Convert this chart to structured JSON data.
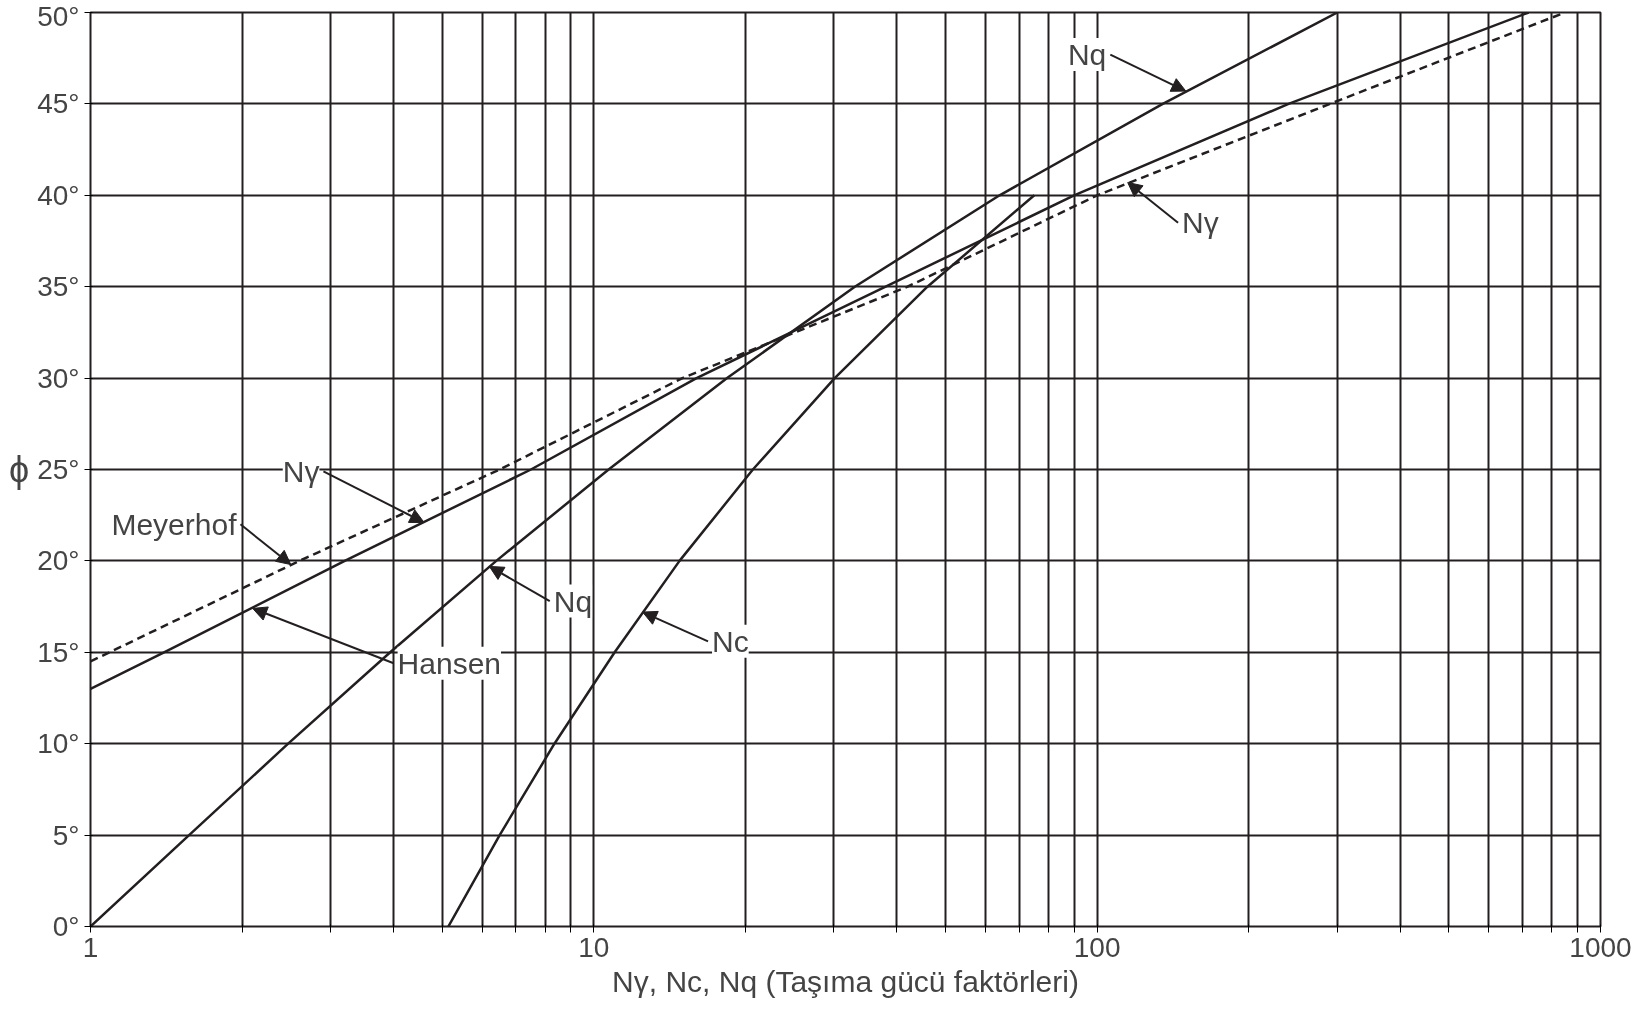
{
  "chart_data": {
    "type": "line",
    "xlabel": "Nγ, Nc, Nq (Taşıma gücü faktörleri)",
    "ylabel": "ϕ",
    "log": "x",
    "grid": true,
    "marker": "none",
    "xlim": [
      1,
      1000
    ],
    "ylim": [
      0,
      50
    ],
    "xticks": [
      1,
      {
        "value": 2,
        "label": null
      },
      {
        "value": 3,
        "label": null
      },
      {
        "value": 4,
        "label": null
      },
      {
        "value": 5,
        "label": null
      },
      {
        "value": 6,
        "label": null
      },
      {
        "value": 7,
        "label": null
      },
      {
        "value": 8,
        "label": null
      },
      {
        "value": 9,
        "label": null
      },
      10,
      {
        "value": 20,
        "label": null
      },
      {
        "value": 30,
        "label": null
      },
      {
        "value": 40,
        "label": null
      },
      {
        "value": 50,
        "label": null
      },
      {
        "value": 60,
        "label": null
      },
      {
        "value": 70,
        "label": null
      },
      {
        "value": 80,
        "label": null
      },
      {
        "value": 90,
        "label": null
      },
      100,
      {
        "value": 200,
        "label": null
      },
      {
        "value": 300,
        "label": null
      },
      {
        "value": 400,
        "label": null
      },
      {
        "value": 500,
        "label": null
      },
      {
        "value": 600,
        "label": null
      },
      {
        "value": 700,
        "label": null
      },
      {
        "value": 800,
        "label": null
      },
      {
        "value": 900,
        "label": null
      },
      1000
    ],
    "yticks": [
      {
        "value": 0,
        "label": "0°"
      },
      {
        "value": 5,
        "label": "5°"
      },
      {
        "value": 10,
        "label": "10°"
      },
      {
        "value": 15,
        "label": "15°"
      },
      {
        "value": 20,
        "label": "20°"
      },
      {
        "value": 25,
        "label": "25°"
      },
      {
        "value": 30,
        "label": "30°"
      },
      {
        "value": 35,
        "label": "35°"
      },
      {
        "value": 40,
        "label": "40°"
      },
      {
        "value": 45,
        "label": "45°"
      },
      {
        "value": 50,
        "label": "50°"
      }
    ],
    "series": [
      {
        "color": "#231f20",
        "line_style": "solid",
        "x": [
          1,
          1.57,
          2.47,
          3.94,
          6.4,
          10.7,
          18.4,
          33,
          64,
          135,
          300
        ],
        "values": [
          0,
          5,
          10,
          15,
          20,
          25,
          30,
          35,
          40,
          45,
          50
        ]
      },
      {
        "color": "#231f20",
        "line_style": "solid",
        "x": [
          5.14,
          6.5,
          8.35,
          11,
          14.8,
          20.7,
          30.1,
          46,
          75
        ],
        "values": [
          0,
          5,
          10,
          15,
          20,
          25,
          30,
          35,
          40
        ]
      },
      {
        "color": "#231f20",
        "line_style": "solid",
        "x": [
          1,
          1.4,
          3.2,
          7.5,
          16,
          38,
          90,
          240,
          720
        ],
        "values": [
          13,
          15,
          20,
          25,
          30,
          35,
          40,
          45,
          50
        ]
      },
      {
        "color": "#231f20",
        "line_style": "dashed",
        "x": [
          1,
          2.6,
          6.5,
          15,
          42,
          100,
          290,
          850
        ],
        "values": [
          14.5,
          20,
          25,
          30,
          35,
          40,
          45,
          50
        ]
      }
    ],
    "annotations": [
      {
        "text": "Meyerhof",
        "x": 2.5,
        "y": 19.8
      },
      {
        "text": "Hansen",
        "x": 2.1,
        "y": 17.4
      },
      {
        "text": "Nγ",
        "x": 4.6,
        "y": 22.1
      },
      {
        "text": "Nq",
        "x": 6.2,
        "y": 19.7
      },
      {
        "text": "Nc",
        "x": 12.5,
        "y": 17.2
      },
      {
        "text": "Nq",
        "x": 150,
        "y": 45.7
      },
      {
        "text": "Nγ",
        "x": 115,
        "y": 40.7
      }
    ]
  }
}
